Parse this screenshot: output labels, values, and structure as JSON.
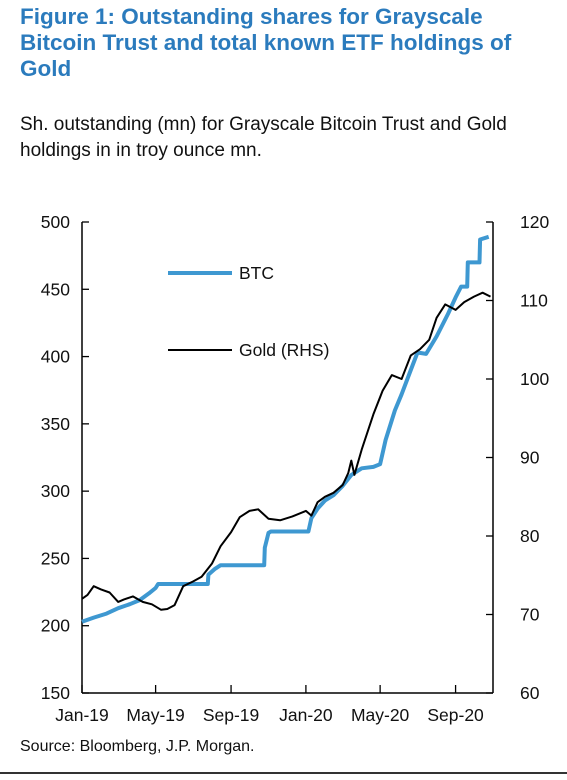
{
  "title": "Figure 1: Outstanding shares for Grayscale Bitcoin Trust and total known ETF holdings of Gold",
  "subtitle": "Sh. outstanding (mn) for Grayscale Bitcoin Trust and Gold holdings in in troy ounce mn.",
  "source": "Source: Bloomberg, J.P. Morgan.",
  "colors": {
    "title": "#2b7bbd",
    "btc": "#3e98d1",
    "gold": "#000000"
  },
  "chart_data": {
    "type": "line",
    "xlim": [
      "2019-01-01",
      "2020-11-01"
    ],
    "x_ticks": [
      {
        "date": "2019-01-01",
        "label": "Jan-19"
      },
      {
        "date": "2019-05-01",
        "label": "May-19"
      },
      {
        "date": "2019-09-01",
        "label": "Sep-19"
      },
      {
        "date": "2020-01-01",
        "label": "Jan-20"
      },
      {
        "date": "2020-05-01",
        "label": "May-20"
      },
      {
        "date": "2020-09-01",
        "label": "Sep-20"
      }
    ],
    "y_left": {
      "lim": [
        150,
        500
      ],
      "ticks": [
        150,
        200,
        250,
        300,
        350,
        400,
        450,
        500
      ]
    },
    "y_right": {
      "lim": [
        60,
        120
      ],
      "ticks": [
        60,
        70,
        80,
        90,
        100,
        110,
        120
      ]
    },
    "grid": false,
    "legend_placement": "upper-middle",
    "series": [
      {
        "name": "BTC",
        "axis": "left",
        "values": [
          [
            "2019-01-01",
            203
          ],
          [
            "2019-01-20",
            206
          ],
          [
            "2019-02-10",
            209
          ],
          [
            "2019-03-01",
            213
          ],
          [
            "2019-03-20",
            216
          ],
          [
            "2019-04-05",
            219
          ],
          [
            "2019-04-20",
            224
          ],
          [
            "2019-05-01",
            228
          ],
          [
            "2019-05-05",
            231
          ],
          [
            "2019-06-01",
            231
          ],
          [
            "2019-07-01",
            231
          ],
          [
            "2019-07-25",
            231
          ],
          [
            "2019-07-26",
            238
          ],
          [
            "2019-08-05",
            242
          ],
          [
            "2019-08-15",
            245
          ],
          [
            "2019-09-01",
            245
          ],
          [
            "2019-10-01",
            245
          ],
          [
            "2019-10-25",
            245
          ],
          [
            "2019-10-26",
            258
          ],
          [
            "2019-11-01",
            269
          ],
          [
            "2019-11-05",
            270
          ],
          [
            "2019-12-01",
            270
          ],
          [
            "2020-01-01",
            270
          ],
          [
            "2020-01-05",
            270
          ],
          [
            "2020-01-10",
            280
          ],
          [
            "2020-01-20",
            287
          ],
          [
            "2020-02-01",
            293
          ],
          [
            "2020-02-15",
            297
          ],
          [
            "2020-03-01",
            304
          ],
          [
            "2020-03-15",
            312
          ],
          [
            "2020-04-01",
            317
          ],
          [
            "2020-04-20",
            318
          ],
          [
            "2020-05-01",
            320
          ],
          [
            "2020-05-10",
            338
          ],
          [
            "2020-05-25",
            360
          ],
          [
            "2020-06-05",
            372
          ],
          [
            "2020-06-20",
            390
          ],
          [
            "2020-07-01",
            403
          ],
          [
            "2020-07-15",
            402
          ],
          [
            "2020-08-01",
            415
          ],
          [
            "2020-08-20",
            432
          ],
          [
            "2020-09-01",
            444
          ],
          [
            "2020-09-10",
            452
          ],
          [
            "2020-09-20",
            452
          ],
          [
            "2020-09-21",
            470
          ],
          [
            "2020-10-10",
            470
          ],
          [
            "2020-10-11",
            487
          ],
          [
            "2020-10-25",
            489
          ]
        ]
      },
      {
        "name": "Gold (RHS)",
        "axis": "right",
        "values": [
          [
            "2019-01-01",
            72.0
          ],
          [
            "2019-01-10",
            72.5
          ],
          [
            "2019-01-20",
            73.6
          ],
          [
            "2019-02-01",
            73.2
          ],
          [
            "2019-02-15",
            72.8
          ],
          [
            "2019-03-01",
            71.6
          ],
          [
            "2019-03-10",
            71.9
          ],
          [
            "2019-03-25",
            72.3
          ],
          [
            "2019-04-10",
            71.6
          ],
          [
            "2019-04-25",
            71.3
          ],
          [
            "2019-05-10",
            70.6
          ],
          [
            "2019-05-20",
            70.7
          ],
          [
            "2019-06-01",
            71.2
          ],
          [
            "2019-06-15",
            73.6
          ],
          [
            "2019-07-01",
            74.2
          ],
          [
            "2019-07-15",
            74.8
          ],
          [
            "2019-08-01",
            76.5
          ],
          [
            "2019-08-15",
            78.7
          ],
          [
            "2019-09-01",
            80.5
          ],
          [
            "2019-09-15",
            82.4
          ],
          [
            "2019-10-01",
            83.2
          ],
          [
            "2019-10-15",
            83.4
          ],
          [
            "2019-11-01",
            82.2
          ],
          [
            "2019-11-20",
            82.0
          ],
          [
            "2019-12-10",
            82.5
          ],
          [
            "2020-01-01",
            83.2
          ],
          [
            "2020-01-10",
            82.6
          ],
          [
            "2020-01-20",
            84.3
          ],
          [
            "2020-02-01",
            85.0
          ],
          [
            "2020-02-15",
            85.5
          ],
          [
            "2020-03-01",
            86.5
          ],
          [
            "2020-03-10",
            88.0
          ],
          [
            "2020-03-15",
            89.6
          ],
          [
            "2020-03-20",
            87.8
          ],
          [
            "2020-04-01",
            91.0
          ],
          [
            "2020-04-20",
            95.5
          ],
          [
            "2020-05-05",
            98.5
          ],
          [
            "2020-05-20",
            100.5
          ],
          [
            "2020-06-05",
            100.0
          ],
          [
            "2020-06-20",
            103.0
          ],
          [
            "2020-07-05",
            103.8
          ],
          [
            "2020-07-20",
            105.0
          ],
          [
            "2020-08-01",
            107.8
          ],
          [
            "2020-08-15",
            109.5
          ],
          [
            "2020-09-01",
            108.8
          ],
          [
            "2020-09-15",
            109.8
          ],
          [
            "2020-10-01",
            110.5
          ],
          [
            "2020-10-15",
            111.0
          ],
          [
            "2020-10-28",
            110.5
          ]
        ]
      }
    ]
  }
}
